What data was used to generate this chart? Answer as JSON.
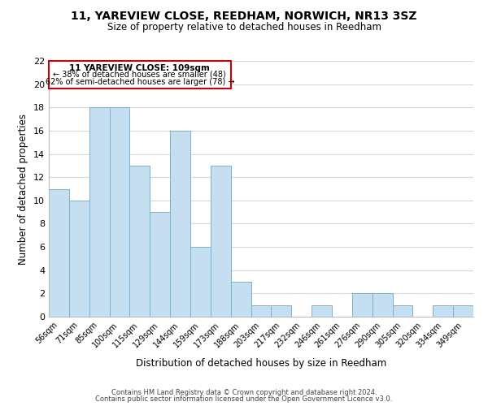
{
  "title_line1": "11, YAREVIEW CLOSE, REEDHAM, NORWICH, NR13 3SZ",
  "title_line2": "Size of property relative to detached houses in Reedham",
  "xlabel": "Distribution of detached houses by size in Reedham",
  "ylabel": "Number of detached properties",
  "bin_labels": [
    "56sqm",
    "71sqm",
    "85sqm",
    "100sqm",
    "115sqm",
    "129sqm",
    "144sqm",
    "159sqm",
    "173sqm",
    "188sqm",
    "203sqm",
    "217sqm",
    "232sqm",
    "246sqm",
    "261sqm",
    "276sqm",
    "290sqm",
    "305sqm",
    "320sqm",
    "334sqm",
    "349sqm"
  ],
  "bar_heights": [
    11,
    10,
    18,
    18,
    13,
    9,
    16,
    6,
    13,
    3,
    1,
    1,
    0,
    1,
    0,
    2,
    2,
    1,
    0,
    1,
    1
  ],
  "bar_color": "#c6dff0",
  "bar_edge_color": "#7ab3d4",
  "annotation_text_line1": "11 YAREVIEW CLOSE: 109sqm",
  "annotation_text_line2": "← 38% of detached houses are smaller (48)",
  "annotation_text_line3": "62% of semi-detached houses are larger (78) →",
  "annotation_box_color": "#ffffff",
  "annotation_box_edge_color": "#cc0000",
  "ylim": [
    0,
    22
  ],
  "yticks": [
    0,
    2,
    4,
    6,
    8,
    10,
    12,
    14,
    16,
    18,
    20,
    22
  ],
  "footer_line1": "Contains HM Land Registry data © Crown copyright and database right 2024.",
  "footer_line2": "Contains public sector information licensed under the Open Government Licence v3.0.",
  "background_color": "#ffffff",
  "grid_color": "#d0d8e0"
}
